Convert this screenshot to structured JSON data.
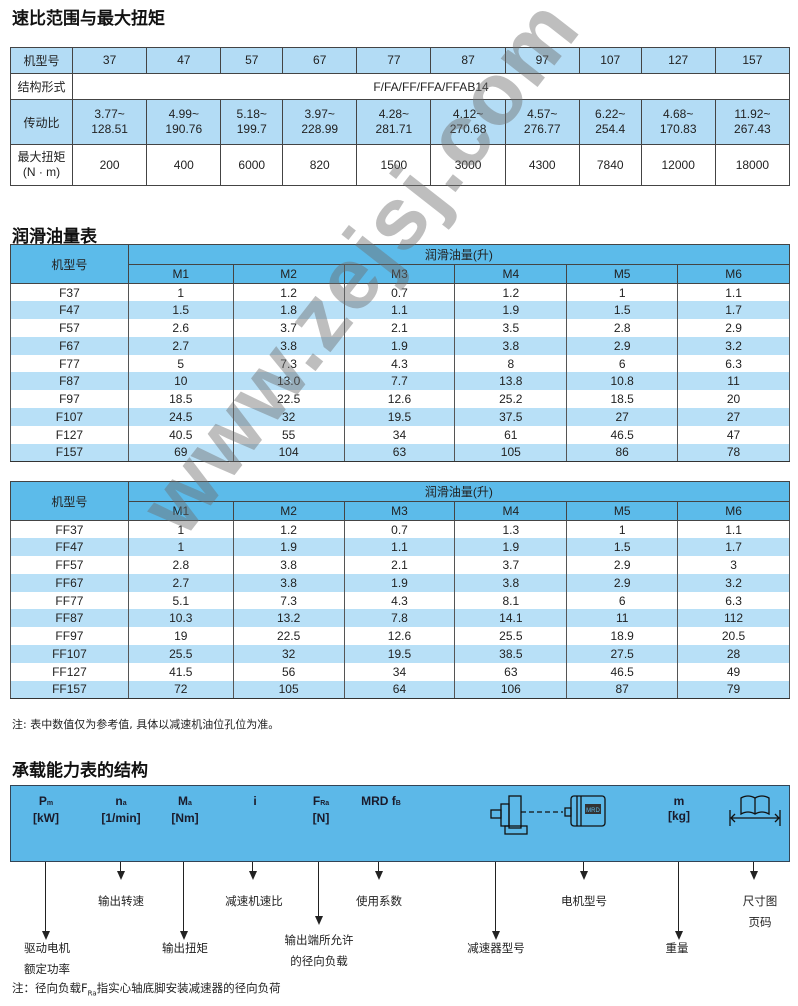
{
  "section1": {
    "title": "速比范围与最大扭矩",
    "row_labels": [
      "机型号",
      "结构形式",
      "传动比",
      "最大扭矩\n(N · m)"
    ],
    "models": [
      "37",
      "47",
      "57",
      "67",
      "77",
      "87",
      "97",
      "107",
      "127",
      "157"
    ],
    "structure": "F/FA/FF/FFA/FFAB14",
    "ratios": [
      "3.77~\n128.51",
      "4.99~\n190.76",
      "5.18~\n199.7",
      "3.97~\n228.99",
      "4.28~\n281.71",
      "4.12~\n270.68",
      "4.57~\n276.77",
      "6.22~\n254.4",
      "4.68~\n170.83",
      "11.92~\n267.43"
    ],
    "torque": [
      "200",
      "400",
      "6000",
      "820",
      "1500",
      "3000",
      "4300",
      "7840",
      "12000",
      "18000"
    ]
  },
  "section2": {
    "title": "润滑油量表"
  },
  "lube_table_f": {
    "model_header": "机型号",
    "group_header": "润滑油量(升)",
    "columns": [
      "M1",
      "M2",
      "M3",
      "M4",
      "M5",
      "M6"
    ],
    "rows": [
      [
        "F37",
        "1",
        "1.2",
        "0.7",
        "1.2",
        "1",
        "1.1"
      ],
      [
        "F47",
        "1.5",
        "1.8",
        "1.1",
        "1.9",
        "1.5",
        "1.7"
      ],
      [
        "F57",
        "2.6",
        "3.7",
        "2.1",
        "3.5",
        "2.8",
        "2.9"
      ],
      [
        "F67",
        "2.7",
        "3.8",
        "1.9",
        "3.8",
        "2.9",
        "3.2"
      ],
      [
        "F77",
        "5",
        "7.3",
        "4.3",
        "8",
        "6",
        "6.3"
      ],
      [
        "F87",
        "10",
        "13.0",
        "7.7",
        "13.8",
        "10.8",
        "11"
      ],
      [
        "F97",
        "18.5",
        "22.5",
        "12.6",
        "25.2",
        "18.5",
        "20"
      ],
      [
        "F107",
        "24.5",
        "32",
        "19.5",
        "37.5",
        "27",
        "27"
      ],
      [
        "F127",
        "40.5",
        "55",
        "34",
        "61",
        "46.5",
        "47"
      ],
      [
        "F157",
        "69",
        "104",
        "63",
        "105",
        "86",
        "78"
      ]
    ]
  },
  "lube_table_ff": {
    "model_header": "机型号",
    "group_header": "润滑油量(升)",
    "columns": [
      "M1",
      "M2",
      "M3",
      "M4",
      "M5",
      "M6"
    ],
    "rows": [
      [
        "FF37",
        "1",
        "1.2",
        "0.7",
        "1.3",
        "1",
        "1.1"
      ],
      [
        "FF47",
        "1",
        "1.9",
        "1.1",
        "1.9",
        "1.5",
        "1.7"
      ],
      [
        "FF57",
        "2.8",
        "3.8",
        "2.1",
        "3.7",
        "2.9",
        "3"
      ],
      [
        "FF67",
        "2.7",
        "3.8",
        "1.9",
        "3.8",
        "2.9",
        "3.2"
      ],
      [
        "FF77",
        "5.1",
        "7.3",
        "4.3",
        "8.1",
        "6",
        "6.3"
      ],
      [
        "FF87",
        "10.3",
        "13.2",
        "7.8",
        "14.1",
        "11",
        "112"
      ],
      [
        "FF97",
        "19",
        "22.5",
        "12.6",
        "25.5",
        "18.9",
        "20.5"
      ],
      [
        "FF107",
        "25.5",
        "32",
        "19.5",
        "38.5",
        "27.5",
        "28"
      ],
      [
        "FF127",
        "41.5",
        "56",
        "34",
        "63",
        "46.5",
        "49"
      ],
      [
        "FF157",
        "72",
        "105",
        "64",
        "106",
        "87",
        "79"
      ]
    ]
  },
  "note1": "注: 表中数值仅为参考值, 具体以减速机油位孔位为准。",
  "section3": {
    "title": "承载能力表的结构",
    "bar": {
      "pm": "P",
      "pm_sub": "m",
      "pm_unit": "[kW]",
      "na": "n",
      "na_sub": "a",
      "na_unit": "[1/min]",
      "ma": "M",
      "ma_sub": "a",
      "ma_unit": "[Nm]",
      "i": "i",
      "fra": "F",
      "fra_sub": "Ra",
      "fra_unit": "[N]",
      "mrd": "MRD f",
      "mrd_sub": "B",
      "m": "m",
      "m_unit": "[kg]",
      "motor_badge": "MRD"
    },
    "labels": {
      "pm": [
        "驱动电机",
        "额定功率"
      ],
      "na": "输出转速",
      "ma": "输出扭矩",
      "i": "减速机速比",
      "fra": [
        "输出端所允许",
        "的径向负载"
      ],
      "mrd": "使用系数",
      "gear": "减速器型号",
      "motor": "电机型号",
      "m": "重量",
      "page": [
        "尺寸图",
        "页码"
      ]
    },
    "note_prefix": "注：径向负载F",
    "note_sub": "Ra",
    "note_suffix": "指实心轴底脚安装减速器的径向负荷"
  },
  "watermark": "www.zejsj.com",
  "colors": {
    "header_blue": "#5cbbea",
    "light_blue": "#b3dcf5",
    "bar_blue": "#5cb8e8"
  }
}
